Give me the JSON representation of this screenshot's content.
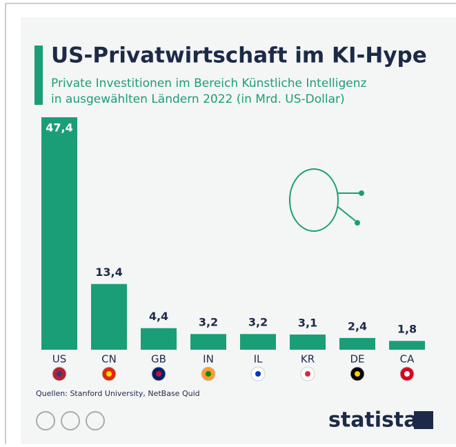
{
  "chart_data": {
    "type": "bar",
    "title": "US-Privatwirtschaft im KI-Hype",
    "subtitle": [
      "Private Investitionen im Bereich Künstliche Intelligenz",
      "in ausgewählten Ländern 2022 (in Mrd. US-Dollar)"
    ],
    "categories": [
      "US",
      "CN",
      "GB",
      "IN",
      "IL",
      "KR",
      "DE",
      "CA"
    ],
    "values": [
      47.4,
      13.4,
      4.4,
      3.2,
      3.2,
      3.1,
      2.4,
      1.8
    ],
    "value_labels": [
      "47,4",
      "13,4",
      "4,4",
      "3,2",
      "3,2",
      "3,1",
      "2,4",
      "1,8"
    ],
    "color": "#1a9e78",
    "source": "Quellen: Stanford University, NetBase Quid",
    "brand": "statista"
  }
}
